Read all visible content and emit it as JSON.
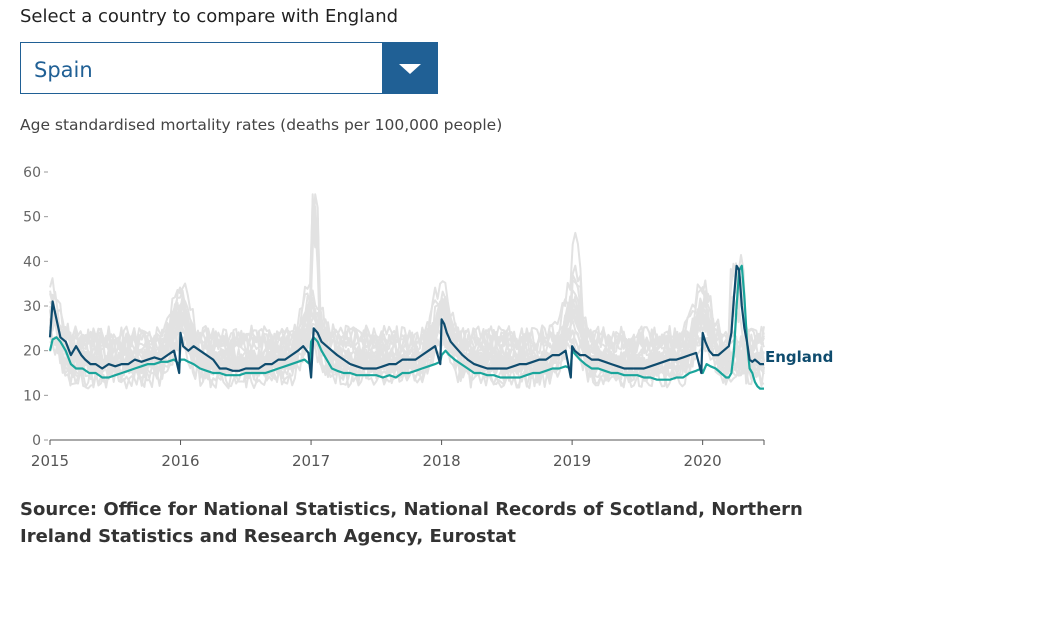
{
  "controls": {
    "prompt": "Select a country to compare with England",
    "selected_country": "Spain"
  },
  "chart_data": {
    "type": "line",
    "subtitle": "Age standardised mortality rates (deaths per 100,000 people)",
    "y_ticks": [
      "0",
      "10",
      "20",
      "30",
      "40",
      "50",
      "60"
    ],
    "x_ticks": [
      "2015",
      "2016",
      "2017",
      "2018",
      "2019",
      "2020"
    ],
    "ylim": [
      0,
      60
    ],
    "xlim": [
      2015.0,
      2020.47
    ],
    "grid": false,
    "end_label": "England",
    "colors": {
      "england": "#0f4c6e",
      "spain": "#1aa59b",
      "others": "#e2e2e2"
    },
    "series": [
      {
        "name": "England",
        "x": [
          2015.0,
          2015.02,
          2015.05,
          2015.08,
          2015.12,
          2015.16,
          2015.2,
          2015.24,
          2015.27,
          2015.31,
          2015.35,
          2015.4,
          2015.45,
          2015.5,
          2015.55,
          2015.6,
          2015.65,
          2015.7,
          2015.75,
          2015.8,
          2015.85,
          2015.9,
          2015.95,
          2015.99,
          2016.0,
          2016.02,
          2016.06,
          2016.1,
          2016.15,
          2016.2,
          2016.25,
          2016.3,
          2016.35,
          2016.4,
          2016.45,
          2016.5,
          2016.55,
          2016.6,
          2016.65,
          2016.7,
          2016.75,
          2016.8,
          2016.85,
          2016.9,
          2016.94,
          2016.98,
          2017.0,
          2017.02,
          2017.05,
          2017.08,
          2017.12,
          2017.16,
          2017.2,
          2017.25,
          2017.3,
          2017.35,
          2017.4,
          2017.45,
          2017.5,
          2017.55,
          2017.6,
          2017.65,
          2017.7,
          2017.75,
          2017.8,
          2017.85,
          2017.9,
          2017.95,
          2017.99,
          2018.0,
          2018.02,
          2018.04,
          2018.07,
          2018.1,
          2018.13,
          2018.16,
          2018.2,
          2018.25,
          2018.3,
          2018.35,
          2018.4,
          2018.45,
          2018.5,
          2018.55,
          2018.6,
          2018.65,
          2018.7,
          2018.75,
          2018.8,
          2018.85,
          2018.9,
          2018.95,
          2018.99,
          2019.0,
          2019.02,
          2019.06,
          2019.1,
          2019.15,
          2019.2,
          2019.25,
          2019.3,
          2019.35,
          2019.4,
          2019.45,
          2019.5,
          2019.55,
          2019.6,
          2019.65,
          2019.7,
          2019.75,
          2019.8,
          2019.85,
          2019.9,
          2019.95,
          2019.99,
          2020.0,
          2020.02,
          2020.05,
          2020.08,
          2020.12,
          2020.16,
          2020.2,
          2020.22,
          2020.24,
          2020.26,
          2020.28,
          2020.3,
          2020.32,
          2020.34,
          2020.36,
          2020.38,
          2020.4,
          2020.42,
          2020.44,
          2020.47
        ],
        "values": [
          23,
          31,
          27,
          23,
          22,
          19,
          21,
          19,
          18,
          17,
          17,
          16,
          17,
          16.5,
          17,
          17,
          18,
          17.5,
          18,
          18.5,
          18,
          19,
          20,
          15,
          24,
          21,
          20,
          21,
          20,
          19,
          18,
          16,
          16,
          15.5,
          15.5,
          16,
          16,
          16,
          17,
          17,
          18,
          18,
          19,
          20,
          21,
          19.5,
          14,
          25,
          24,
          22,
          21,
          20,
          19,
          18,
          17,
          16.5,
          16,
          16,
          16,
          16.5,
          17,
          17,
          18,
          18,
          18,
          19,
          20,
          21,
          17,
          27,
          26,
          24,
          22,
          21,
          20,
          19,
          18,
          17,
          16.5,
          16,
          16,
          16,
          16,
          16.5,
          17,
          17,
          17.5,
          18,
          18,
          19,
          19,
          20,
          14,
          21,
          20,
          19,
          19,
          18,
          18,
          17.5,
          17,
          16.5,
          16,
          16,
          16,
          16,
          16.5,
          17,
          17.5,
          18,
          18,
          18.5,
          19,
          19.5,
          15,
          24,
          22,
          20,
          19,
          19,
          20,
          21,
          24,
          32,
          39,
          38,
          30,
          25,
          22,
          18,
          17.5,
          18,
          17.5,
          17,
          17
        ]
      },
      {
        "name": "Spain",
        "x": [
          2015.0,
          2015.02,
          2015.05,
          2015.08,
          2015.12,
          2015.16,
          2015.2,
          2015.25,
          2015.3,
          2015.35,
          2015.4,
          2015.45,
          2015.5,
          2015.55,
          2015.6,
          2015.65,
          2015.7,
          2015.75,
          2015.8,
          2015.85,
          2015.9,
          2015.95,
          2015.99,
          2016.0,
          2016.03,
          2016.06,
          2016.1,
          2016.15,
          2016.2,
          2016.25,
          2016.3,
          2016.35,
          2016.4,
          2016.45,
          2016.5,
          2016.55,
          2016.6,
          2016.65,
          2016.7,
          2016.75,
          2016.8,
          2016.85,
          2016.9,
          2016.95,
          2016.99,
          2017.0,
          2017.02,
          2017.05,
          2017.08,
          2017.12,
          2017.16,
          2017.2,
          2017.25,
          2017.3,
          2017.35,
          2017.4,
          2017.45,
          2017.5,
          2017.55,
          2017.6,
          2017.65,
          2017.7,
          2017.75,
          2017.8,
          2017.85,
          2017.9,
          2017.95,
          2017.99,
          2018.0,
          2018.03,
          2018.06,
          2018.1,
          2018.15,
          2018.2,
          2018.25,
          2018.3,
          2018.35,
          2018.4,
          2018.45,
          2018.5,
          2018.55,
          2018.6,
          2018.65,
          2018.7,
          2018.75,
          2018.8,
          2018.85,
          2018.9,
          2018.95,
          2018.99,
          2019.0,
          2019.03,
          2019.06,
          2019.1,
          2019.15,
          2019.2,
          2019.25,
          2019.3,
          2019.35,
          2019.4,
          2019.45,
          2019.5,
          2019.55,
          2019.6,
          2019.65,
          2019.7,
          2019.75,
          2019.8,
          2019.85,
          2019.9,
          2019.95,
          2019.99,
          2020.0,
          2020.03,
          2020.06,
          2020.1,
          2020.14,
          2020.18,
          2020.2,
          2020.22,
          2020.24,
          2020.26,
          2020.28,
          2020.3,
          2020.32,
          2020.34,
          2020.36,
          2020.38,
          2020.4,
          2020.42,
          2020.44,
          2020.47
        ],
        "values": [
          20,
          22.5,
          23,
          22,
          20,
          17,
          16,
          16,
          15,
          15,
          14,
          14,
          14.5,
          15,
          15.5,
          16,
          16.5,
          17,
          17,
          17.5,
          17.5,
          18,
          17,
          18,
          18,
          17.5,
          17,
          16,
          15.5,
          15,
          15,
          14.5,
          14.5,
          14.5,
          15,
          15,
          15,
          15,
          15.5,
          16,
          16.5,
          17,
          17.5,
          18,
          17,
          22,
          23,
          22,
          20,
          18,
          16,
          15.5,
          15,
          15,
          14.5,
          14.5,
          14.5,
          14.5,
          14,
          14.5,
          14,
          15,
          15,
          15.5,
          16,
          16.5,
          17,
          17.5,
          19,
          20,
          19,
          18,
          17,
          16,
          15,
          15,
          14.5,
          14.5,
          14,
          14,
          14,
          14,
          14.5,
          15,
          15,
          15.5,
          16,
          16,
          16.5,
          16,
          20,
          19,
          18,
          17,
          16,
          16,
          15.5,
          15,
          15,
          14.5,
          14.5,
          14.5,
          14,
          14,
          13.5,
          13.5,
          13.5,
          14,
          14,
          15,
          15.5,
          16,
          15,
          17,
          16.5,
          16,
          15,
          14,
          14,
          15,
          20,
          30,
          38,
          39,
          32,
          22,
          16,
          15,
          13,
          12,
          11.5,
          11.5
        ]
      }
    ]
  }
}
